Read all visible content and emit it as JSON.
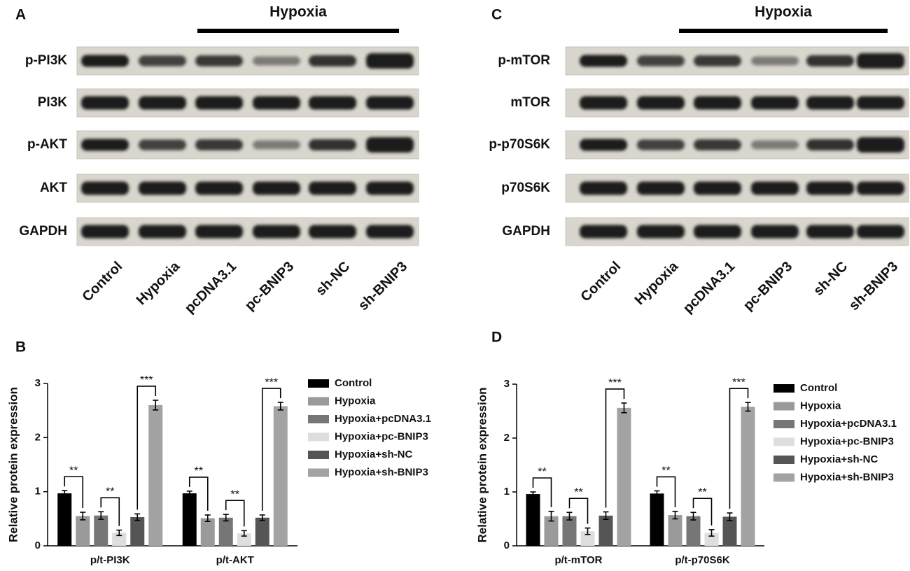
{
  "panel_labels": [
    "A",
    "B",
    "C",
    "D"
  ],
  "blots": [
    {
      "condition": "Hypoxia",
      "rows": [
        "p-PI3K",
        "PI3K",
        "p-AKT",
        "AKT",
        "GAPDH"
      ],
      "lanes": [
        "Control",
        "Hypoxia",
        "pcDNA3.1",
        "pc-BNIP3",
        "sh-NC",
        "sh-BNIP3"
      ]
    },
    {
      "condition": "Hypoxia",
      "rows": [
        "p-mTOR",
        "mTOR",
        "p-p70S6K",
        "p70S6K",
        "GAPDH"
      ],
      "lanes": [
        "Control",
        "Hypoxia",
        "pcDNA3.1",
        "pc-BNIP3",
        "sh-NC",
        "sh-BNIP3"
      ]
    }
  ],
  "chart_data": [
    {
      "type": "bar",
      "y_label": "Relative protein expression",
      "categories": [
        "p/t-PI3K",
        "p/t-AKT"
      ],
      "ylim": [
        0,
        3
      ],
      "yticks": [
        0,
        1,
        2,
        3
      ],
      "significance": [
        [
          "**",
          "**",
          "***"
        ],
        [
          "**",
          "**",
          "***"
        ]
      ],
      "series": [
        {
          "name": "Control",
          "color": "#000000",
          "values": [
            0.97,
            0.97
          ],
          "errors": [
            0.05,
            0.04
          ]
        },
        {
          "name": "Hypoxia",
          "color": "#9a9a9a",
          "values": [
            0.55,
            0.51
          ],
          "errors": [
            0.07,
            0.06
          ]
        },
        {
          "name": "Hypoxia+pcDNA3.1",
          "color": "#767676",
          "values": [
            0.56,
            0.52
          ],
          "errors": [
            0.07,
            0.06
          ]
        },
        {
          "name": "Hypoxia+pc-BNIP3",
          "color": "#dedede",
          "values": [
            0.24,
            0.23
          ],
          "errors": [
            0.05,
            0.05
          ]
        },
        {
          "name": "Hypoxia+sh-NC",
          "color": "#555555",
          "values": [
            0.53,
            0.52
          ],
          "errors": [
            0.06,
            0.05
          ]
        },
        {
          "name": "Hypoxia+sh-BNIP3",
          "color": "#a3a3a3",
          "values": [
            2.6,
            2.58
          ],
          "errors": [
            0.09,
            0.07
          ]
        }
      ]
    },
    {
      "type": "bar",
      "y_label": "Relative protein expression",
      "categories": [
        "p/t-mTOR",
        "p/t-p70S6K"
      ],
      "ylim": [
        0,
        3
      ],
      "yticks": [
        0,
        1,
        2,
        3
      ],
      "significance": [
        [
          "**",
          "**",
          "***"
        ],
        [
          "**",
          "**",
          "***"
        ]
      ],
      "series": [
        {
          "name": "Control",
          "color": "#000000",
          "values": [
            0.96,
            0.97
          ],
          "errors": [
            0.04,
            0.05
          ]
        },
        {
          "name": "Hypoxia",
          "color": "#9a9a9a",
          "values": [
            0.55,
            0.57
          ],
          "errors": [
            0.09,
            0.07
          ]
        },
        {
          "name": "Hypoxia+pcDNA3.1",
          "color": "#767676",
          "values": [
            0.55,
            0.55
          ],
          "errors": [
            0.07,
            0.07
          ]
        },
        {
          "name": "Hypoxia+pc-BNIP3",
          "color": "#dedede",
          "values": [
            0.27,
            0.24
          ],
          "errors": [
            0.06,
            0.06
          ]
        },
        {
          "name": "Hypoxia+sh-NC",
          "color": "#555555",
          "values": [
            0.56,
            0.54
          ],
          "errors": [
            0.07,
            0.07
          ]
        },
        {
          "name": "Hypoxia+sh-BNIP3",
          "color": "#a3a3a3",
          "values": [
            2.56,
            2.58
          ],
          "errors": [
            0.09,
            0.08
          ]
        }
      ]
    }
  ]
}
